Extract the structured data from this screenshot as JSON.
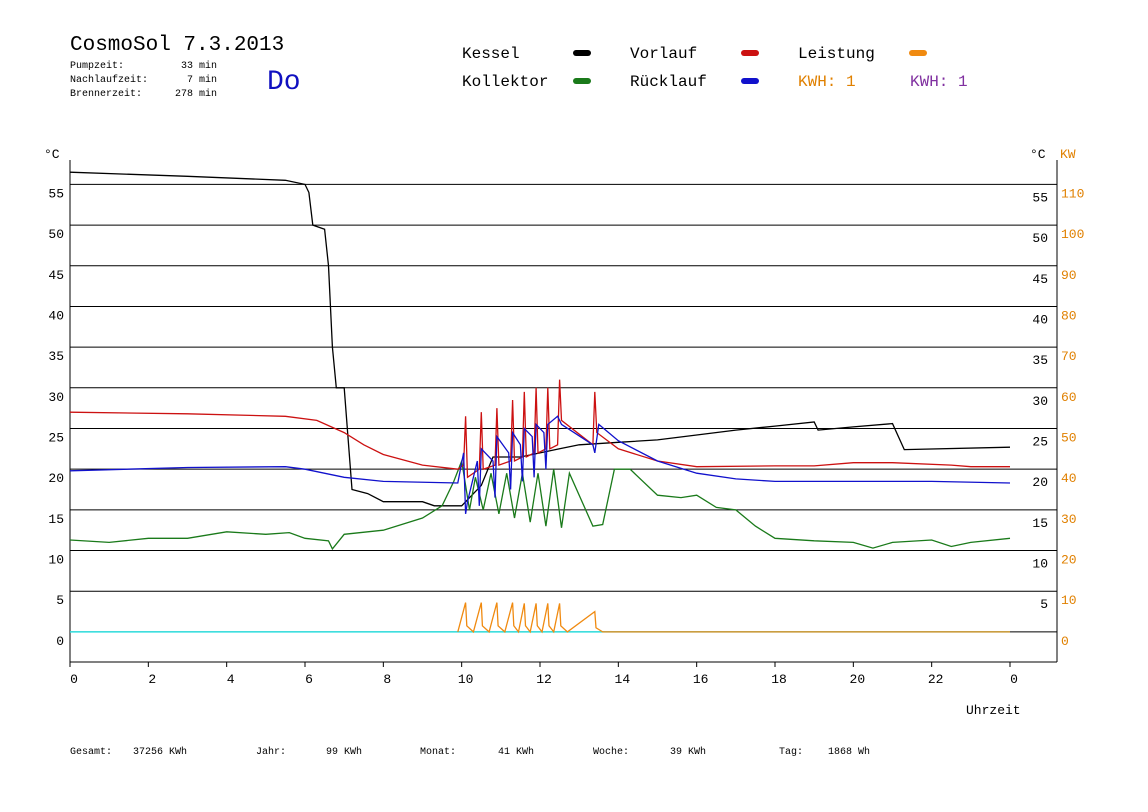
{
  "chart_data": {
    "type": "line",
    "title": "CosmoSol 7.3.2013",
    "weekday": "Do",
    "info": [
      {
        "label": "Pumpzeit:",
        "value": "33 min"
      },
      {
        "label": "Nachlaufzeit:",
        "value": "7 min"
      },
      {
        "label": "Brennerzeit:",
        "value": "278 min"
      }
    ],
    "kwh_labels": [
      {
        "text": "KWH: 1",
        "color": "#e08000"
      },
      {
        "text": "KWH: 1",
        "color": "#8030a0"
      }
    ],
    "y_unit": "°C",
    "y_unit_right": "°C",
    "y2_unit": "KW",
    "x_label": "Uhrzeit",
    "xlim": [
      0,
      25.2
    ],
    "xticks": [
      0,
      2,
      4,
      6,
      8,
      10,
      12,
      14,
      16,
      18,
      20,
      22,
      {
        "value": 24,
        "label": "0"
      }
    ],
    "ylim": [
      -3.7,
      58
    ],
    "yticks": [
      0,
      5,
      10,
      15,
      20,
      25,
      30,
      35,
      40,
      45,
      50,
      55
    ],
    "yticks_right": [
      5,
      10,
      15,
      20,
      25,
      30,
      35,
      40,
      45,
      50,
      55
    ],
    "y2lim": [
      -7.4,
      116
    ],
    "y2ticks": [
      0,
      10,
      20,
      30,
      40,
      50,
      60,
      70,
      80,
      90,
      100,
      110
    ],
    "grid": true,
    "series": [
      {
        "name": "Kessel",
        "color": "#000000",
        "x": [
          0,
          3,
          5.5,
          6,
          6.1,
          6.2,
          6.5,
          6.6,
          6.7,
          6.8,
          7.0,
          7.2,
          7.6,
          8,
          9,
          9.3,
          10,
          10.5,
          10.8,
          11.5,
          12.5,
          13,
          14,
          15,
          16,
          17,
          18,
          19,
          19.1,
          20,
          21,
          21.3,
          24
        ],
        "values": [
          56.5,
          56,
          55.5,
          55,
          54,
          50,
          49.5,
          45,
          35,
          30,
          30,
          17.5,
          17,
          16,
          16,
          15.5,
          15.5,
          18,
          21.5,
          21.5,
          22.5,
          23,
          23.3,
          23.6,
          24.2,
          24.8,
          25.3,
          25.8,
          24.8,
          25.2,
          25.6,
          22.4,
          22.7
        ]
      },
      {
        "name": "Kollektor",
        "color": "#1a7a1a",
        "x": [
          0,
          1,
          2,
          3,
          4,
          5,
          5.6,
          6,
          6.6,
          6.7,
          7,
          8,
          9,
          9.5,
          9.8,
          10,
          10.2,
          10.35,
          10.55,
          10.75,
          10.95,
          11.15,
          11.35,
          11.55,
          11.75,
          11.95,
          12.15,
          12.35,
          12.55,
          12.75,
          13.35,
          13.6,
          13.9,
          14.3,
          15,
          15.6,
          16,
          16.5,
          17,
          17.5,
          18,
          19,
          20,
          20.5,
          21,
          22,
          22.5,
          23,
          24
        ],
        "values": [
          11.3,
          11,
          11.5,
          11.5,
          12.3,
          12,
          12.2,
          11.5,
          11.2,
          10.2,
          12,
          12.5,
          14,
          15.5,
          18.5,
          21,
          15,
          19,
          15,
          19.5,
          14.5,
          19.5,
          14,
          19.5,
          13.5,
          19.5,
          13,
          20,
          12.8,
          19.5,
          13,
          13.2,
          20,
          20,
          16.8,
          16.5,
          16.8,
          15.3,
          15,
          13,
          11.5,
          11.2,
          11,
          10.3,
          11,
          11.3,
          10.5,
          11,
          11.5
        ]
      },
      {
        "name": "Vorlauf",
        "color": "#cc1111",
        "x": [
          0,
          3,
          5.5,
          6.3,
          7,
          7.5,
          8,
          9,
          9.9,
          10.05,
          10.1,
          10.15,
          10.45,
          10.5,
          10.55,
          10.85,
          10.9,
          10.95,
          11.25,
          11.3,
          11.35,
          11.55,
          11.6,
          11.65,
          11.85,
          11.9,
          11.95,
          12.15,
          12.2,
          12.25,
          12.45,
          12.5,
          12.55,
          13.35,
          13.4,
          13.45,
          14,
          15,
          16,
          18,
          19,
          20,
          21,
          22.5,
          23,
          24
        ],
        "values": [
          27,
          26.8,
          26.5,
          26,
          24.5,
          23,
          21.8,
          20.5,
          20,
          20.5,
          26.5,
          19,
          20,
          27,
          20,
          20.5,
          27.5,
          20.5,
          21,
          28.5,
          21,
          21.5,
          29.5,
          21.5,
          22,
          30,
          22,
          22.5,
          30,
          22.5,
          23,
          31,
          26,
          23,
          29.5,
          24.5,
          22.5,
          21,
          20.3,
          20.4,
          20.4,
          20.8,
          20.8,
          20.5,
          20.3,
          20.3
        ]
      },
      {
        "name": "Rücklauf",
        "color": "#1111cc",
        "x": [
          0,
          3,
          5.5,
          6,
          7,
          8,
          9.9,
          10.05,
          10.1,
          10.15,
          10.4,
          10.45,
          10.5,
          10.8,
          10.85,
          10.9,
          11.2,
          11.25,
          11.3,
          11.5,
          11.55,
          11.6,
          11.8,
          11.85,
          11.9,
          12.1,
          12.15,
          12.2,
          12.45,
          12.55,
          13.35,
          13.4,
          13.5,
          14,
          15,
          16,
          17,
          18,
          20,
          22,
          24
        ],
        "values": [
          19.8,
          20.2,
          20.3,
          20,
          19,
          18.5,
          18.3,
          22,
          14.5,
          16,
          21,
          15.5,
          22.5,
          21,
          16.5,
          24,
          22,
          17.5,
          24.5,
          23,
          18.5,
          25,
          24,
          19,
          25.5,
          24.5,
          20,
          25.5,
          26.5,
          25.5,
          23,
          22,
          25.5,
          23.5,
          21,
          19.5,
          18.8,
          18.5,
          18.5,
          18.5,
          18.3
        ]
      },
      {
        "name": "Leistung",
        "color": "#f08a10",
        "axis": "y2",
        "x": [
          9.9,
          10.1,
          10.13,
          10.3,
          10.5,
          10.53,
          10.7,
          10.9,
          10.93,
          11.1,
          11.3,
          11.33,
          11.45,
          11.6,
          11.63,
          11.75,
          11.9,
          11.93,
          12.05,
          12.2,
          12.23,
          12.35,
          12.5,
          12.53,
          12.7,
          13.4,
          13.43,
          13.6,
          24
        ],
        "values": [
          0,
          7.2,
          1.5,
          0,
          7.2,
          1.5,
          0,
          7.2,
          1.5,
          0,
          7.2,
          1.5,
          0,
          7,
          1.5,
          0,
          7,
          1.5,
          0,
          7,
          1.5,
          0,
          7,
          1.5,
          0,
          5,
          1,
          0,
          0
        ]
      }
    ],
    "footer": [
      {
        "label": "Gesamt:",
        "value": "37256 KWh"
      },
      {
        "label": "Jahr:",
        "value": "99 KWh"
      },
      {
        "label": "Monat:",
        "value": "41 KWh"
      },
      {
        "label": "Woche:",
        "value": "39 KWh"
      },
      {
        "label": "Tag:",
        "value": "1868 Wh"
      }
    ]
  }
}
